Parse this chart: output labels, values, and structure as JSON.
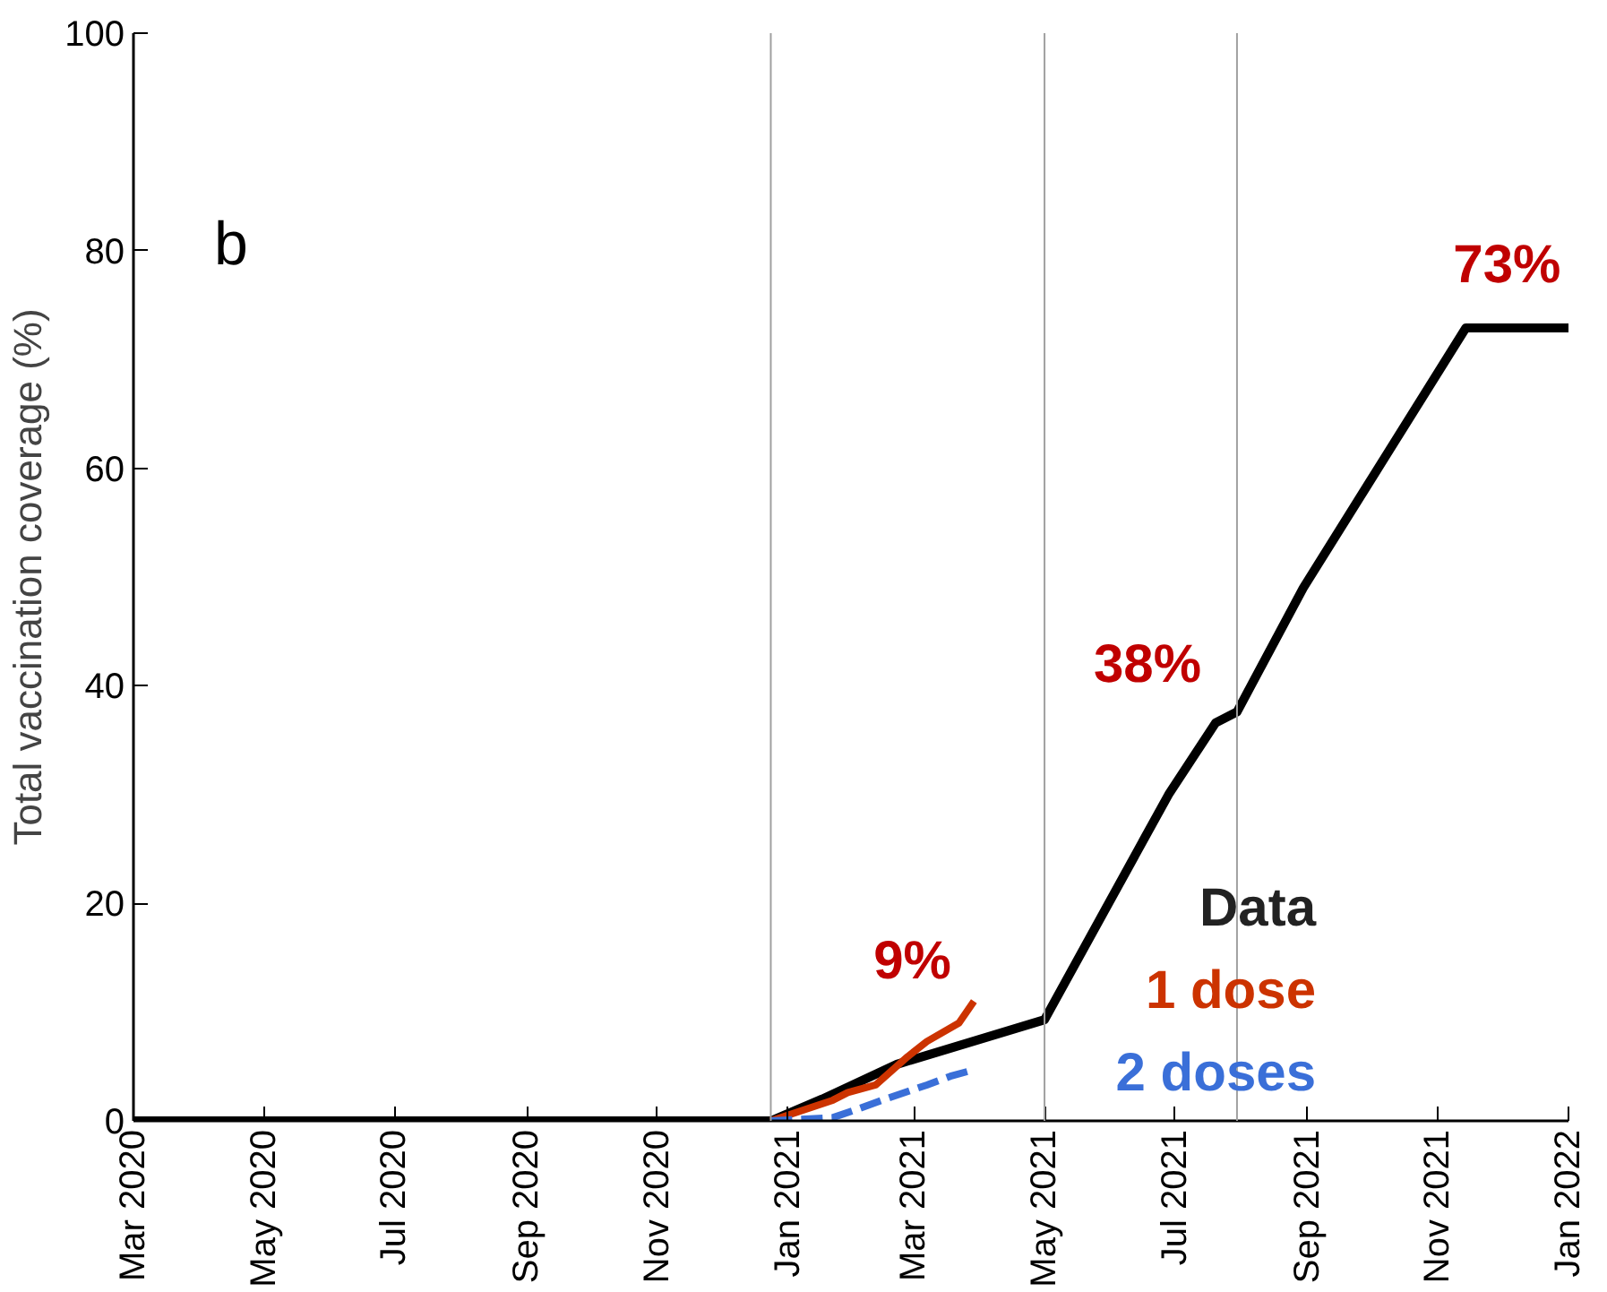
{
  "chart_data": {
    "type": "line",
    "ylabel": "Total vaccination coverage (%)",
    "legend_title": "Data",
    "xlim": [
      "2020-03-01",
      "2022-01-01"
    ],
    "ylim": [
      0,
      100
    ],
    "xticks": [
      {
        "value": "2020-03-01",
        "label": "Mar 2020"
      },
      {
        "value": "2020-05-01",
        "label": "May 2020"
      },
      {
        "value": "2020-07-01",
        "label": "Jul 2020"
      },
      {
        "value": "2020-09-01",
        "label": "Sep 2020"
      },
      {
        "value": "2020-11-01",
        "label": "Nov 2020"
      },
      {
        "value": "2021-01-01",
        "label": "Jan 2021"
      },
      {
        "value": "2021-03-01",
        "label": "Mar 2021"
      },
      {
        "value": "2021-05-01",
        "label": "May 2021"
      },
      {
        "value": "2021-07-01",
        "label": "Jul 2021"
      },
      {
        "value": "2021-09-01",
        "label": "Sep 2021"
      },
      {
        "value": "2021-11-01",
        "label": "Nov 2021"
      },
      {
        "value": "2022-01-01",
        "label": "Jan 2022"
      }
    ],
    "yticks": [
      0,
      20,
      40,
      60,
      80,
      100
    ],
    "grid": false,
    "legend": "bottom right",
    "series": [
      {
        "color": "#000000",
        "x": [
          "2020-03-01",
          "2020-12-24",
          "2021-01-17",
          "2021-02-21",
          "2021-05-01",
          "2021-06-28",
          "2021-07-20",
          "2021-07-30",
          "2021-08-30",
          "2021-11-14",
          "2022-01-01"
        ],
        "values": [
          0,
          0,
          2,
          5.2,
          9.3,
          30,
          36.6,
          37.6,
          49,
          72.9,
          72.9
        ]
      },
      {
        "name": "1 dose",
        "color": "#cc3300",
        "x": [
          "2020-12-24",
          "2021-01-22",
          "2021-01-29",
          "2021-02-11",
          "2021-02-26",
          "2021-03-07",
          "2021-03-22",
          "2021-03-29"
        ],
        "values": [
          0,
          1.9,
          2.6,
          3.3,
          5.9,
          7.3,
          9.0,
          11.0
        ]
      },
      {
        "name": "2 doses",
        "color": "#3a6fd8",
        "line_style": "dashed",
        "x": [
          "2020-12-24",
          "2021-01-22",
          "2021-01-31",
          "2021-02-17",
          "2021-03-07",
          "2021-03-18",
          "2021-03-29"
        ],
        "values": [
          0,
          0.3,
          0.9,
          2.1,
          3.3,
          4.1,
          4.7
        ]
      }
    ],
    "ref_lines": [
      {
        "axis": "x",
        "value": "2020-12-24",
        "color": "#a0a0a0"
      },
      {
        "axis": "x",
        "value": "2021-05-01",
        "color": "#a0a0a0"
      },
      {
        "axis": "x",
        "value": "2021-07-30",
        "color": "#a0a0a0"
      }
    ],
    "annotations": [
      "b",
      {
        "text": "9%",
        "x": "2021-03-22",
        "y": 9.0
      },
      {
        "text": "38%",
        "x": "2021-07-30",
        "y": 37.6
      },
      {
        "text": "73%",
        "x": "2021-11-14",
        "y": 73
      }
    ]
  }
}
